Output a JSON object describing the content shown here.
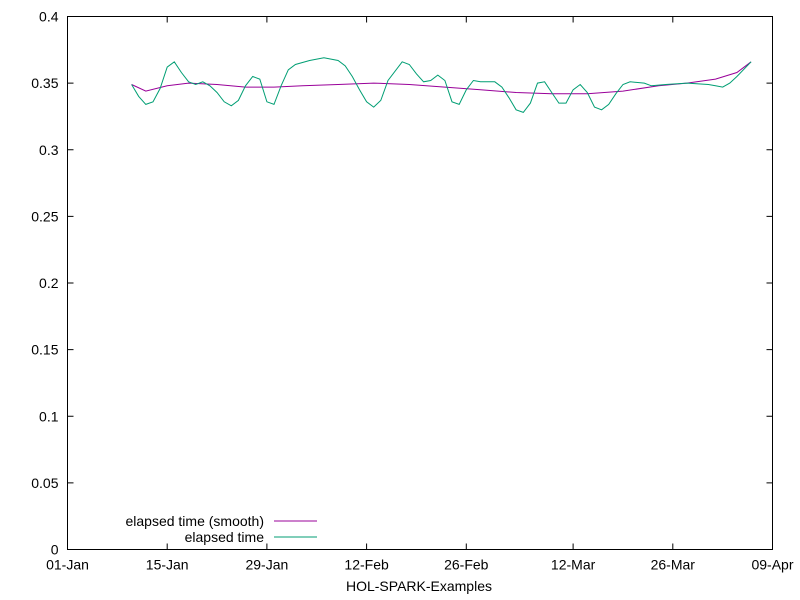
{
  "chart_data": {
    "type": "line",
    "title": "",
    "xlabel": "HOL-SPARK-Examples",
    "ylabel": "",
    "xlim": [
      "2024-01-01",
      "2024-04-09"
    ],
    "ylim": [
      0,
      0.4
    ],
    "x_ticks": [
      "01-Jan",
      "15-Jan",
      "29-Jan",
      "12-Feb",
      "26-Feb",
      "12-Mar",
      "26-Mar",
      "09-Apr"
    ],
    "x_tick_dates": [
      "2024-01-01",
      "2024-01-15",
      "2024-01-29",
      "2024-02-12",
      "2024-02-26",
      "2024-03-12",
      "2024-03-26",
      "2024-04-09"
    ],
    "y_ticks": [
      "0",
      "0.05",
      "0.1",
      "0.15",
      "0.2",
      "0.25",
      "0.3",
      "0.35",
      "0.4"
    ],
    "y_tick_values": [
      0,
      0.05,
      0.1,
      0.15,
      0.2,
      0.25,
      0.3,
      0.35,
      0.4
    ],
    "grid": false,
    "legend_position": "bottom-left",
    "series": [
      {
        "name": "elapsed time (smooth)",
        "color": "#990099",
        "points": [
          [
            "2024-01-10",
            0.349
          ],
          [
            "2024-01-12",
            0.344
          ],
          [
            "2024-01-15",
            0.348
          ],
          [
            "2024-01-18",
            0.35
          ],
          [
            "2024-01-22",
            0.349
          ],
          [
            "2024-01-26",
            0.347
          ],
          [
            "2024-01-30",
            0.347
          ],
          [
            "2024-02-03",
            0.348
          ],
          [
            "2024-02-08",
            0.349
          ],
          [
            "2024-02-13",
            0.35
          ],
          [
            "2024-02-18",
            0.349
          ],
          [
            "2024-02-23",
            0.347
          ],
          [
            "2024-02-28",
            0.345
          ],
          [
            "2024-03-04",
            0.343
          ],
          [
            "2024-03-09",
            0.342
          ],
          [
            "2024-03-14",
            0.342
          ],
          [
            "2024-03-19",
            0.344
          ],
          [
            "2024-03-24",
            0.348
          ],
          [
            "2024-03-28",
            0.35
          ],
          [
            "2024-04-01",
            0.353
          ],
          [
            "2024-04-04",
            0.358
          ],
          [
            "2024-04-06",
            0.366
          ]
        ]
      },
      {
        "name": "elapsed time",
        "color": "#009e73",
        "points": [
          [
            "2024-01-10",
            0.349
          ],
          [
            "2024-01-11",
            0.34
          ],
          [
            "2024-01-12",
            0.334
          ],
          [
            "2024-01-13",
            0.336
          ],
          [
            "2024-01-14",
            0.346
          ],
          [
            "2024-01-15",
            0.362
          ],
          [
            "2024-01-16",
            0.366
          ],
          [
            "2024-01-17",
            0.358
          ],
          [
            "2024-01-18",
            0.351
          ],
          [
            "2024-01-19",
            0.349
          ],
          [
            "2024-01-20",
            0.351
          ],
          [
            "2024-01-21",
            0.348
          ],
          [
            "2024-01-22",
            0.343
          ],
          [
            "2024-01-23",
            0.336
          ],
          [
            "2024-01-24",
            0.333
          ],
          [
            "2024-01-25",
            0.337
          ],
          [
            "2024-01-26",
            0.348
          ],
          [
            "2024-01-27",
            0.355
          ],
          [
            "2024-01-28",
            0.353
          ],
          [
            "2024-01-29",
            0.336
          ],
          [
            "2024-01-30",
            0.334
          ],
          [
            "2024-01-31",
            0.348
          ],
          [
            "2024-02-01",
            0.36
          ],
          [
            "2024-02-02",
            0.364
          ],
          [
            "2024-02-04",
            0.367
          ],
          [
            "2024-02-06",
            0.369
          ],
          [
            "2024-02-08",
            0.367
          ],
          [
            "2024-02-09",
            0.363
          ],
          [
            "2024-02-10",
            0.355
          ],
          [
            "2024-02-11",
            0.345
          ],
          [
            "2024-02-12",
            0.336
          ],
          [
            "2024-02-13",
            0.332
          ],
          [
            "2024-02-14",
            0.337
          ],
          [
            "2024-02-15",
            0.352
          ],
          [
            "2024-02-17",
            0.366
          ],
          [
            "2024-02-18",
            0.364
          ],
          [
            "2024-02-19",
            0.357
          ],
          [
            "2024-02-20",
            0.351
          ],
          [
            "2024-02-21",
            0.352
          ],
          [
            "2024-02-22",
            0.356
          ],
          [
            "2024-02-23",
            0.352
          ],
          [
            "2024-02-24",
            0.336
          ],
          [
            "2024-02-25",
            0.334
          ],
          [
            "2024-02-26",
            0.345
          ],
          [
            "2024-02-27",
            0.352
          ],
          [
            "2024-02-28",
            0.351
          ],
          [
            "2024-03-01",
            0.351
          ],
          [
            "2024-03-02",
            0.347
          ],
          [
            "2024-03-03",
            0.339
          ],
          [
            "2024-03-04",
            0.33
          ],
          [
            "2024-03-05",
            0.328
          ],
          [
            "2024-03-06",
            0.335
          ],
          [
            "2024-03-07",
            0.35
          ],
          [
            "2024-03-08",
            0.351
          ],
          [
            "2024-03-09",
            0.343
          ],
          [
            "2024-03-10",
            0.335
          ],
          [
            "2024-03-11",
            0.335
          ],
          [
            "2024-03-12",
            0.345
          ],
          [
            "2024-03-13",
            0.349
          ],
          [
            "2024-03-14",
            0.343
          ],
          [
            "2024-03-15",
            0.332
          ],
          [
            "2024-03-16",
            0.33
          ],
          [
            "2024-03-17",
            0.334
          ],
          [
            "2024-03-18",
            0.342
          ],
          [
            "2024-03-19",
            0.349
          ],
          [
            "2024-03-20",
            0.351
          ],
          [
            "2024-03-22",
            0.35
          ],
          [
            "2024-03-23",
            0.348
          ],
          [
            "2024-03-25",
            0.349
          ],
          [
            "2024-03-28",
            0.35
          ],
          [
            "2024-03-31",
            0.349
          ],
          [
            "2024-04-01",
            0.348
          ],
          [
            "2024-04-02",
            0.347
          ],
          [
            "2024-04-03",
            0.35
          ],
          [
            "2024-04-04",
            0.355
          ],
          [
            "2024-04-06",
            0.366
          ]
        ]
      }
    ]
  }
}
